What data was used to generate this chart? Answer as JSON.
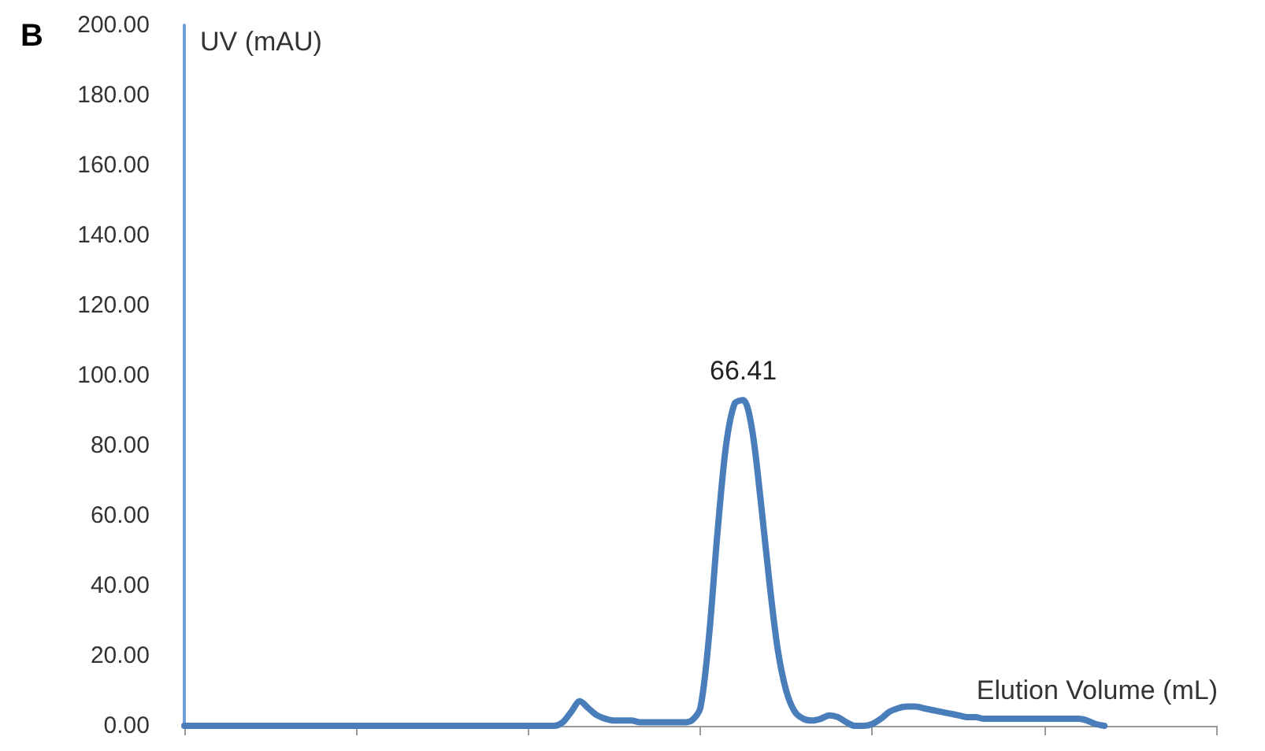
{
  "chart_data": {
    "type": "line",
    "title": "B",
    "ylabel": "UV (mAU)",
    "xlabel": "Elution Volume (mL)",
    "annotations": [
      "66.41"
    ],
    "categories": [
      null,
      null,
      null,
      null,
      null,
      null,
      null,
      null,
      null,
      null,
      null,
      null,
      null,
      null,
      null,
      null,
      null,
      null,
      null,
      null,
      null,
      null,
      null,
      null,
      null,
      null,
      null,
      null,
      null,
      null,
      null,
      null,
      null,
      null,
      null,
      null,
      null,
      null,
      null,
      null,
      null,
      null,
      null,
      null,
      null,
      null,
      null,
      null,
      null,
      null,
      null,
      null,
      null,
      null,
      null,
      null,
      null,
      null,
      null,
      null,
      null,
      null,
      null,
      null,
      null,
      null,
      null,
      null,
      null,
      null,
      null,
      null,
      null,
      null,
      null,
      null,
      null,
      null,
      null,
      null,
      null,
      null,
      null,
      null,
      null,
      null,
      null,
      null,
      null,
      null,
      null,
      null,
      null,
      null,
      null,
      null,
      null,
      null,
      null,
      null,
      null,
      null,
      null,
      null,
      null,
      null,
      null,
      null,
      null,
      null,
      null,
      null,
      null,
      null,
      null,
      null,
      null,
      null,
      null,
      null,
      null
    ],
    "series": [
      {
        "color": "#4a7ebb",
        "values": [
          0,
          0,
          0,
          0,
          0,
          0,
          0,
          0,
          0,
          0,
          0,
          0,
          0,
          0,
          0,
          0,
          0,
          0,
          0,
          0,
          0,
          0,
          0,
          0,
          0,
          0,
          0,
          0,
          0,
          0,
          0,
          0,
          0,
          0,
          0,
          0,
          0,
          0,
          0,
          0,
          0,
          0,
          0,
          0,
          1,
          4,
          7,
          5,
          3,
          2,
          1.5,
          1.5,
          1.5,
          1,
          1,
          1,
          1,
          1,
          1,
          1.5,
          5,
          25,
          55,
          80,
          92,
          93,
          85,
          65,
          42,
          22,
          10,
          4,
          2,
          1.5,
          2,
          3,
          2.5,
          1,
          0,
          0,
          0.5,
          2,
          4,
          5,
          5.5,
          5.5,
          5,
          4.5,
          4,
          3.5,
          3,
          2.5,
          2.5,
          2,
          2,
          2,
          2,
          2,
          2,
          2,
          2,
          2,
          2,
          2,
          2,
          1.5,
          0.5,
          0,
          null,
          null,
          null,
          null,
          null,
          null,
          null,
          null,
          null,
          null,
          null,
          null,
          null
        ]
      }
    ],
    "ylim": [
      0,
      200
    ],
    "yticks": [
      {
        "value": 0,
        "label": "0.00"
      },
      {
        "value": 20,
        "label": "20.00"
      },
      {
        "value": 40,
        "label": "40.00"
      },
      {
        "value": 60,
        "label": "60.00"
      },
      {
        "value": 80,
        "label": "80.00"
      },
      {
        "value": 100,
        "label": "100.00"
      },
      {
        "value": 120,
        "label": "120.00"
      },
      {
        "value": 140,
        "label": "140.00"
      },
      {
        "value": 160,
        "label": "160.00"
      },
      {
        "value": 180,
        "label": "180.00"
      },
      {
        "value": 200,
        "label": "200.00"
      }
    ],
    "grid": false,
    "marker": "none",
    "line_style": "solid"
  }
}
